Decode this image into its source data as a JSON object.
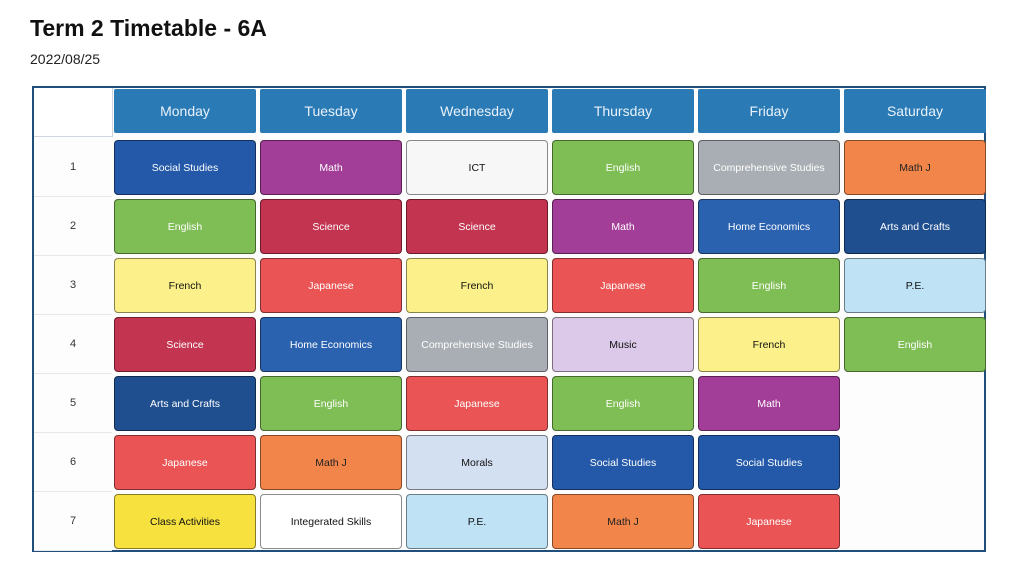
{
  "title": "Term 2 Timetable - 6A",
  "date": "2022/08/25",
  "days": [
    "Monday",
    "Tuesday",
    "Wednesday",
    "Thursday",
    "Friday",
    "Saturday"
  ],
  "periods": [
    "1",
    "2",
    "3",
    "4",
    "5",
    "6",
    "7"
  ],
  "subject_colors": {
    "Social Studies": {
      "bg": "#2359a8",
      "fg": "#ffffff"
    },
    "Math": {
      "bg": "#a23d98",
      "fg": "#ffffff"
    },
    "ICT": {
      "bg": "#f7f7f7",
      "fg": "#111111"
    },
    "English": {
      "bg": "#7fbd55",
      "fg": "#ffffff"
    },
    "Comprehensive Studies": {
      "bg": "#a9aeb4",
      "fg": "#ffffff"
    },
    "Math J": {
      "bg": "#f2864a",
      "fg": "#222222"
    },
    "Science": {
      "bg": "#c2344f",
      "fg": "#ffffff"
    },
    "Home Economics": {
      "bg": "#2a62b0",
      "fg": "#ffffff"
    },
    "Arts and Crafts": {
      "bg": "#1f4f8f",
      "fg": "#ffffff"
    },
    "French": {
      "bg": "#fbf08a",
      "fg": "#111111"
    },
    "Japanese": {
      "bg": "#ea5454",
      "fg": "#ffffff"
    },
    "P.E.": {
      "bg": "#bfe3f5",
      "fg": "#111111"
    },
    "Music": {
      "bg": "#dcc8e8",
      "fg": "#111111"
    },
    "Morals": {
      "bg": "#d3e0f2",
      "fg": "#111111"
    },
    "Class Activities": {
      "bg": "#f6e13f",
      "fg": "#111111"
    },
    "Integerated Skills": {
      "bg": "#ffffff",
      "fg": "#111111"
    }
  },
  "grid": [
    [
      "Social Studies",
      "Math",
      "ICT",
      "English",
      "Comprehensive Studies",
      "Math J"
    ],
    [
      "English",
      "Science",
      "Science",
      "Math",
      "Home Economics",
      "Arts and Crafts"
    ],
    [
      "French",
      "Japanese",
      "French",
      "Japanese",
      "English",
      "P.E."
    ],
    [
      "Science",
      "Home Economics",
      "Comprehensive Studies",
      "Music",
      "French",
      "English"
    ],
    [
      "Arts and Crafts",
      "English",
      "Japanese",
      "English",
      "Math",
      ""
    ],
    [
      "Japanese",
      "Math J",
      "Morals",
      "Social Studies",
      "Social Studies",
      ""
    ],
    [
      "Class Activities",
      "Integerated Skills",
      "P.E.",
      "Math J",
      "Japanese",
      ""
    ]
  ]
}
